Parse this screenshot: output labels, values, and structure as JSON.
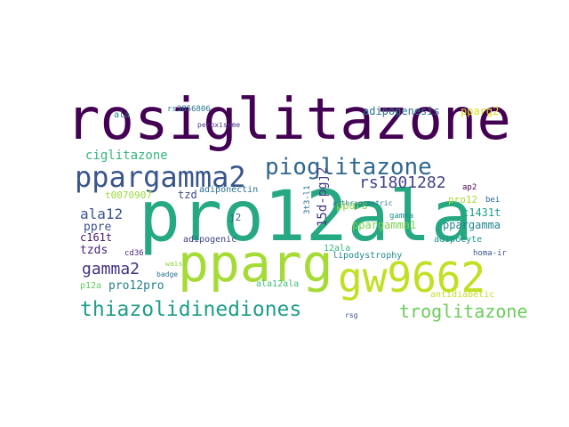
{
  "word_cloud": {
    "words": [
      {
        "text": "rosiglitazone",
        "color": "#440154"
      },
      {
        "text": "pro12ala",
        "color": "#26a983"
      },
      {
        "text": "pparg",
        "color": "#a5db36"
      },
      {
        "text": "gw9662",
        "color": "#c2df23"
      },
      {
        "text": "ppargamma2",
        "color": "#39568c"
      },
      {
        "text": "pioglitazone",
        "color": "#31688e"
      },
      {
        "text": "thiazolidinediones",
        "color": "#1f9e89"
      },
      {
        "text": "troglitazone",
        "color": "#6ccd5a"
      },
      {
        "text": "rs1801282",
        "color": "#414487"
      },
      {
        "text": "ciglitazone",
        "color": "#35b779"
      },
      {
        "text": "gamma2",
        "color": "#46327e"
      },
      {
        "text": "ala12",
        "color": "#3b528b"
      },
      {
        "text": "15d-pgj2",
        "color": "#443983"
      },
      {
        "text": "adipogenesis",
        "color": "#2c728e"
      },
      {
        "text": "pparg2",
        "color": "#d8e219"
      },
      {
        "text": "ppargamma1",
        "color": "#7ad151"
      },
      {
        "text": "ppargamma",
        "color": "#25858e"
      },
      {
        "text": "pro12pro",
        "color": "#277f8e"
      },
      {
        "text": "c1431t",
        "color": "#1fa188"
      },
      {
        "text": "tzds",
        "color": "#482576"
      },
      {
        "text": "tzd",
        "color": "#3e4a89"
      },
      {
        "text": "ppre",
        "color": "#3b528b"
      },
      {
        "text": "ala",
        "color": "#2a788e"
      },
      {
        "text": "c161t",
        "color": "#481a6c"
      },
      {
        "text": "ppars",
        "color": "#8fd744"
      },
      {
        "text": "adiponectin",
        "color": "#2d708e"
      },
      {
        "text": "adipogenic",
        "color": "#404688"
      },
      {
        "text": "t0070907",
        "color": "#9bd93c"
      },
      {
        "text": "pro12",
        "color": "#a8db34"
      },
      {
        "text": "adipocyte",
        "color": "#1f968b"
      },
      {
        "text": "lipodystrophy",
        "color": "#23898e"
      },
      {
        "text": "antidiabetic",
        "color": "#bddf26"
      },
      {
        "text": "ala12ala",
        "color": "#3dbc74"
      },
      {
        "text": "anthropometric",
        "color": "#287c8e"
      },
      {
        "text": "rs3856806",
        "color": "#2a768e"
      },
      {
        "text": "peroxisome",
        "color": "#453781"
      },
      {
        "text": "j2",
        "color": "#33638d"
      },
      {
        "text": "p12a",
        "color": "#65cb5e"
      },
      {
        "text": "cd36",
        "color": "#482878"
      },
      {
        "text": "12ala",
        "color": "#34b679"
      },
      {
        "text": "3t3-l1",
        "color": "#2e6f8e"
      },
      {
        "text": "gamma",
        "color": "#21918c"
      },
      {
        "text": "ap2",
        "color": "#440154"
      },
      {
        "text": "bei",
        "color": "#31688e"
      },
      {
        "text": "homa-ir",
        "color": "#39568c"
      },
      {
        "text": "badge",
        "color": "#2c728e"
      },
      {
        "text": "rsg",
        "color": "#3e4a89"
      },
      {
        "text": "waist",
        "color": "#8fd744"
      }
    ]
  }
}
